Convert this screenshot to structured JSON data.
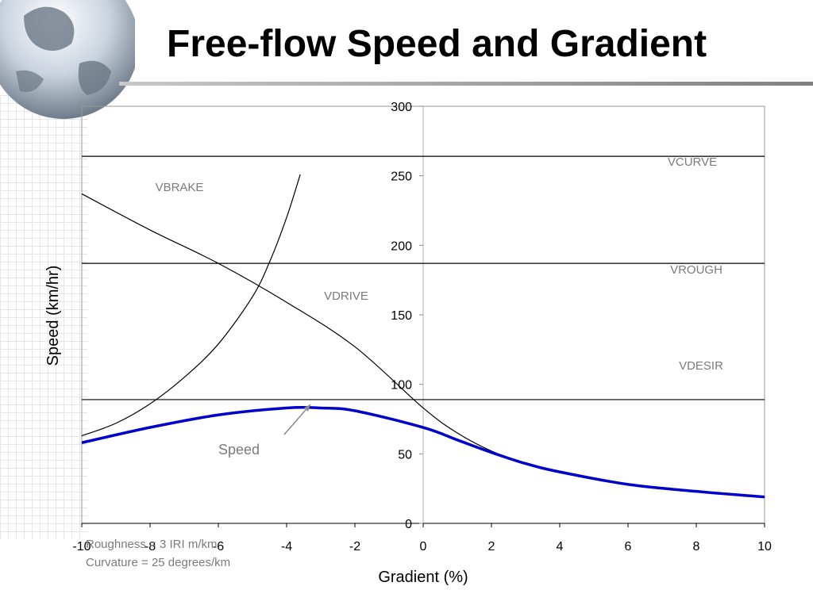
{
  "page": {
    "title": "Free-flow Speed and Gradient"
  },
  "annotations": {
    "roughness": "Roughness = 3 IRI m/km",
    "curvature": "Curvature = 25 degrees/km"
  },
  "chart_data": {
    "type": "line",
    "title": "Free-flow Speed and Gradient",
    "xlabel": "Gradient (%)",
    "ylabel": "Speed (km/hr)",
    "xlim": [
      -10,
      10
    ],
    "ylim": [
      0,
      300
    ],
    "x_ticks": [
      -10,
      -8,
      -6,
      -4,
      -2,
      0,
      2,
      4,
      6,
      8,
      10
    ],
    "y_ticks": [
      0,
      50,
      100,
      150,
      200,
      250,
      300
    ],
    "grid": false,
    "legend": "none",
    "series": [
      {
        "name": "VCURVE",
        "color": "#000000",
        "x": [
          -10,
          10
        ],
        "y": [
          264,
          264
        ]
      },
      {
        "name": "VROUGH",
        "color": "#000000",
        "x": [
          -10,
          10
        ],
        "y": [
          187,
          187
        ]
      },
      {
        "name": "VDESIR",
        "color": "#000000",
        "x": [
          -10,
          10
        ],
        "y": [
          89,
          89
        ]
      },
      {
        "name": "VBRAKE",
        "color": "#000000",
        "x": [
          -10,
          -9,
          -8,
          -7,
          -6,
          -5,
          -4.5,
          -4,
          -3.6
        ],
        "y": [
          63,
          72,
          86,
          105,
          129,
          163,
          188,
          220,
          251
        ]
      },
      {
        "name": "VDRIVE",
        "color": "#000000",
        "x": [
          -10,
          -8,
          -6,
          -4,
          -2,
          0,
          1,
          2,
          3
        ],
        "y": [
          237,
          211,
          187,
          159,
          127,
          83,
          65,
          52,
          43
        ]
      },
      {
        "name": "Speed",
        "color": "#0000cc",
        "x": [
          -10,
          -8,
          -6,
          -4,
          -3,
          -2,
          0,
          1,
          2,
          3,
          4,
          6,
          8,
          10
        ],
        "y": [
          58,
          69,
          78,
          83,
          83,
          81,
          69,
          60,
          51,
          43,
          37,
          28,
          23,
          19
        ]
      }
    ]
  }
}
